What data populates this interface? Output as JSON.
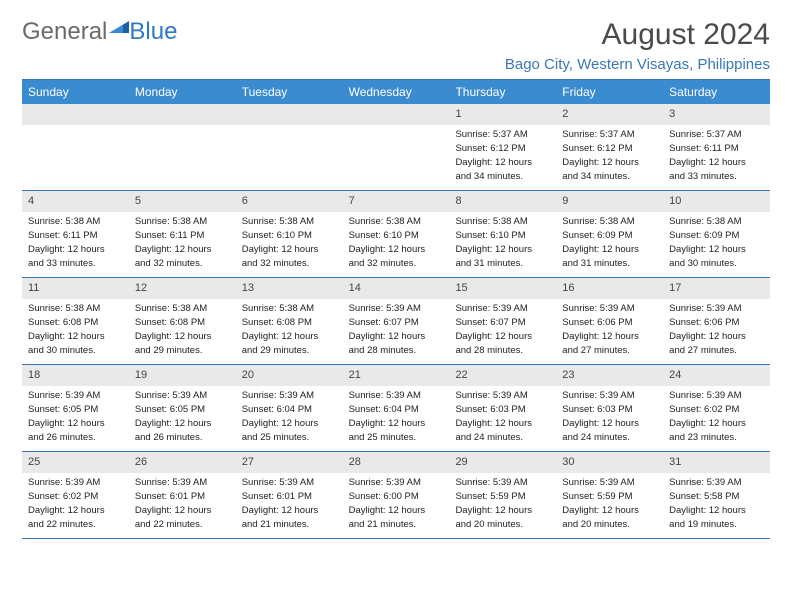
{
  "logo": {
    "part1": "General",
    "part2": "Blue"
  },
  "title": "August 2024",
  "location": "Bago City, Western Visayas, Philippines",
  "weekdays": [
    "Sunday",
    "Monday",
    "Tuesday",
    "Wednesday",
    "Thursday",
    "Friday",
    "Saturday"
  ],
  "colors": {
    "headerBg": "#3a8bcf",
    "borderBlue": "#3a78b5",
    "dayBg": "#e9e9e9",
    "logoBlue": "#2f79c2"
  },
  "weeks": [
    [
      null,
      null,
      null,
      null,
      {
        "d": "1",
        "sr": "5:37 AM",
        "ss": "6:12 PM",
        "dl": "12 hours and 34 minutes."
      },
      {
        "d": "2",
        "sr": "5:37 AM",
        "ss": "6:12 PM",
        "dl": "12 hours and 34 minutes."
      },
      {
        "d": "3",
        "sr": "5:37 AM",
        "ss": "6:11 PM",
        "dl": "12 hours and 33 minutes."
      }
    ],
    [
      {
        "d": "4",
        "sr": "5:38 AM",
        "ss": "6:11 PM",
        "dl": "12 hours and 33 minutes."
      },
      {
        "d": "5",
        "sr": "5:38 AM",
        "ss": "6:11 PM",
        "dl": "12 hours and 32 minutes."
      },
      {
        "d": "6",
        "sr": "5:38 AM",
        "ss": "6:10 PM",
        "dl": "12 hours and 32 minutes."
      },
      {
        "d": "7",
        "sr": "5:38 AM",
        "ss": "6:10 PM",
        "dl": "12 hours and 32 minutes."
      },
      {
        "d": "8",
        "sr": "5:38 AM",
        "ss": "6:10 PM",
        "dl": "12 hours and 31 minutes."
      },
      {
        "d": "9",
        "sr": "5:38 AM",
        "ss": "6:09 PM",
        "dl": "12 hours and 31 minutes."
      },
      {
        "d": "10",
        "sr": "5:38 AM",
        "ss": "6:09 PM",
        "dl": "12 hours and 30 minutes."
      }
    ],
    [
      {
        "d": "11",
        "sr": "5:38 AM",
        "ss": "6:08 PM",
        "dl": "12 hours and 30 minutes."
      },
      {
        "d": "12",
        "sr": "5:38 AM",
        "ss": "6:08 PM",
        "dl": "12 hours and 29 minutes."
      },
      {
        "d": "13",
        "sr": "5:38 AM",
        "ss": "6:08 PM",
        "dl": "12 hours and 29 minutes."
      },
      {
        "d": "14",
        "sr": "5:39 AM",
        "ss": "6:07 PM",
        "dl": "12 hours and 28 minutes."
      },
      {
        "d": "15",
        "sr": "5:39 AM",
        "ss": "6:07 PM",
        "dl": "12 hours and 28 minutes."
      },
      {
        "d": "16",
        "sr": "5:39 AM",
        "ss": "6:06 PM",
        "dl": "12 hours and 27 minutes."
      },
      {
        "d": "17",
        "sr": "5:39 AM",
        "ss": "6:06 PM",
        "dl": "12 hours and 27 minutes."
      }
    ],
    [
      {
        "d": "18",
        "sr": "5:39 AM",
        "ss": "6:05 PM",
        "dl": "12 hours and 26 minutes."
      },
      {
        "d": "19",
        "sr": "5:39 AM",
        "ss": "6:05 PM",
        "dl": "12 hours and 26 minutes."
      },
      {
        "d": "20",
        "sr": "5:39 AM",
        "ss": "6:04 PM",
        "dl": "12 hours and 25 minutes."
      },
      {
        "d": "21",
        "sr": "5:39 AM",
        "ss": "6:04 PM",
        "dl": "12 hours and 25 minutes."
      },
      {
        "d": "22",
        "sr": "5:39 AM",
        "ss": "6:03 PM",
        "dl": "12 hours and 24 minutes."
      },
      {
        "d": "23",
        "sr": "5:39 AM",
        "ss": "6:03 PM",
        "dl": "12 hours and 24 minutes."
      },
      {
        "d": "24",
        "sr": "5:39 AM",
        "ss": "6:02 PM",
        "dl": "12 hours and 23 minutes."
      }
    ],
    [
      {
        "d": "25",
        "sr": "5:39 AM",
        "ss": "6:02 PM",
        "dl": "12 hours and 22 minutes."
      },
      {
        "d": "26",
        "sr": "5:39 AM",
        "ss": "6:01 PM",
        "dl": "12 hours and 22 minutes."
      },
      {
        "d": "27",
        "sr": "5:39 AM",
        "ss": "6:01 PM",
        "dl": "12 hours and 21 minutes."
      },
      {
        "d": "28",
        "sr": "5:39 AM",
        "ss": "6:00 PM",
        "dl": "12 hours and 21 minutes."
      },
      {
        "d": "29",
        "sr": "5:39 AM",
        "ss": "5:59 PM",
        "dl": "12 hours and 20 minutes."
      },
      {
        "d": "30",
        "sr": "5:39 AM",
        "ss": "5:59 PM",
        "dl": "12 hours and 20 minutes."
      },
      {
        "d": "31",
        "sr": "5:39 AM",
        "ss": "5:58 PM",
        "dl": "12 hours and 19 minutes."
      }
    ]
  ],
  "labels": {
    "sunrise": "Sunrise:",
    "sunset": "Sunset:",
    "daylight": "Daylight:"
  }
}
